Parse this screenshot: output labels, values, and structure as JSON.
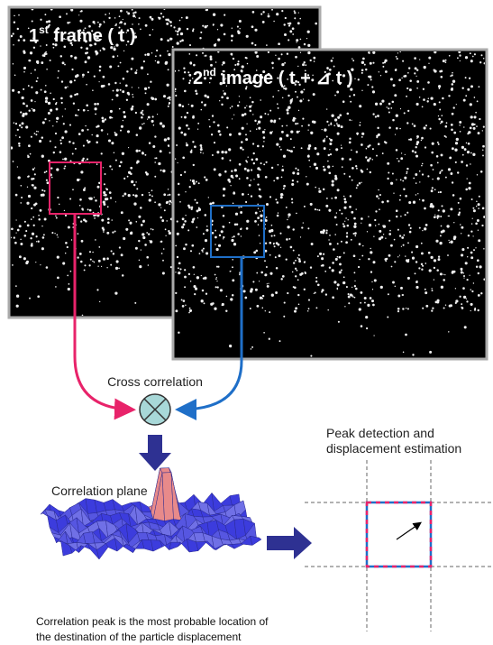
{
  "frames": [
    {
      "number": "1",
      "ordinal": "st",
      "rest": " frame ( t )"
    },
    {
      "number": "2",
      "ordinal": "nd",
      "rest": " image ( t + ⊿ t )"
    }
  ],
  "cross_correlation": "Cross correlation",
  "correlation_plane": "Correlation plane",
  "peak_detection": [
    "Peak detection and",
    "displacement estimation"
  ],
  "caption": [
    "Correlation peak is the most probable location of",
    "the destination of the particle displacement"
  ]
}
